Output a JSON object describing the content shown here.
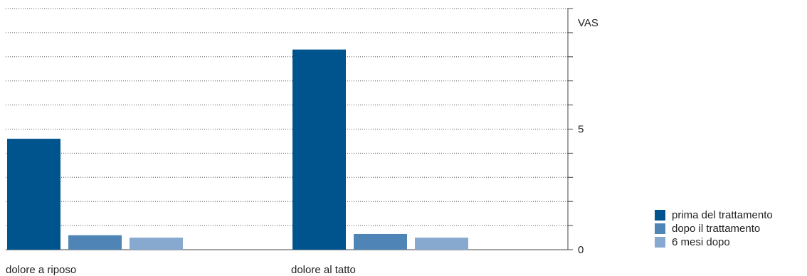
{
  "chart_data": {
    "type": "bar",
    "categories": [
      "dolore a riposo",
      "dolore al tatto"
    ],
    "series": [
      {
        "name": "prima del trattamento",
        "values": [
          4.6,
          8.3
        ],
        "color": "#00548d"
      },
      {
        "name": "dopo il trattamento",
        "values": [
          0.6,
          0.65
        ],
        "color": "#4f85b6"
      },
      {
        "name": "6 mesi dopo",
        "values": [
          0.5,
          0.5
        ],
        "color": "#87a9cf"
      }
    ],
    "ylabel": "VAS",
    "yticks": [
      "0",
      "5"
    ],
    "ylim": [
      0,
      10
    ],
    "grid": true,
    "legend_position": "bottom-right"
  }
}
